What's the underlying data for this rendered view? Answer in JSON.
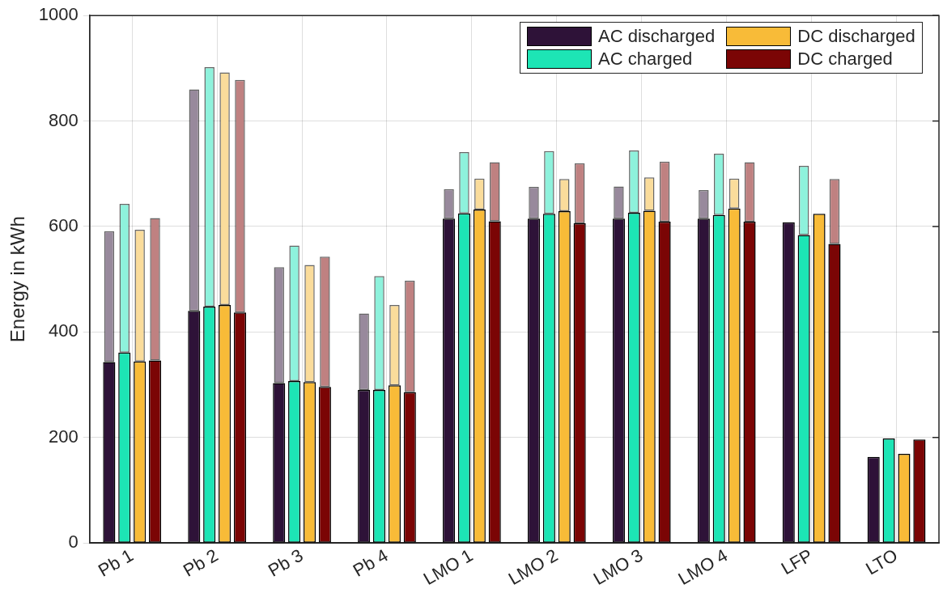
{
  "chart_data": {
    "type": "bar",
    "ylabel": "Energy in kWh",
    "categories": [
      "Pb 1",
      "Pb 2",
      "Pb 3",
      "Pb 4",
      "LMO 1",
      "LMO 2",
      "LMO 3",
      "LMO 4",
      "LFP",
      "LTO"
    ],
    "series": [
      {
        "name": "AC discharged",
        "color": "#2e1238",
        "values": [
          343,
          440,
          303,
          290,
          615,
          615,
          615,
          615,
          608,
          163
        ]
      },
      {
        "name": "AC charged",
        "color": "#1de5b5",
        "values": [
          361,
          448,
          307,
          290,
          625,
          624,
          626,
          622,
          584,
          198
        ]
      },
      {
        "name": "DC discharged",
        "color": "#f8bb38",
        "values": [
          344,
          451,
          305,
          299,
          632,
          629,
          630,
          634,
          624,
          169
        ]
      },
      {
        "name": "DC charged",
        "color": "#7b0505",
        "values": [
          346,
          437,
          296,
          286,
          610,
          606,
          609,
          609,
          567,
          196
        ]
      },
      {
        "color": "#98899c",
        "base": [
          343,
          440,
          303,
          290,
          615,
          615,
          615,
          615,
          null,
          null
        ],
        "values": [
          248,
          420,
          220,
          145,
          56,
          60,
          61,
          54,
          null,
          null
        ]
      },
      {
        "color": "#8ef2dc",
        "base": [
          361,
          448,
          307,
          290,
          625,
          624,
          626,
          622,
          584,
          null
        ],
        "values": [
          282,
          454,
          257,
          216,
          116,
          119,
          118,
          116,
          131,
          null
        ]
      },
      {
        "color": "#fadc9b",
        "base": [
          344,
          451,
          305,
          299,
          632,
          629,
          630,
          634,
          null,
          null
        ],
        "values": [
          250,
          441,
          222,
          152,
          59,
          61,
          63,
          57,
          null,
          null
        ]
      },
      {
        "color": "#bf8181",
        "base": [
          346,
          437,
          296,
          286,
          610,
          606,
          609,
          609,
          567,
          null
        ],
        "values": [
          270,
          441,
          247,
          211,
          112,
          114,
          114,
          113,
          123,
          null
        ]
      }
    ],
    "ylim": [
      0,
      1000
    ],
    "yticks": [
      0,
      200,
      400,
      600,
      800,
      1000
    ],
    "grid": true,
    "legend": "top right"
  }
}
